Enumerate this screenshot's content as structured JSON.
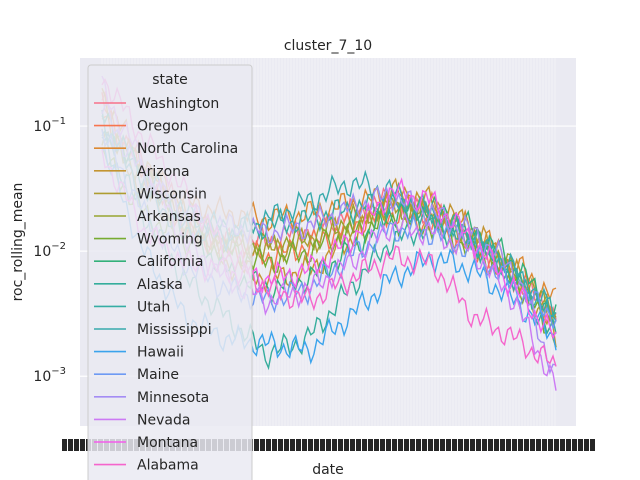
{
  "chart_data": {
    "type": "line",
    "title": "cluster_7_10",
    "xlabel": "date",
    "ylabel": "roc_rolling_mean",
    "yscale": "log",
    "ylim": [
      0.0004,
      0.35
    ],
    "grid": true,
    "y_ticks": [
      {
        "value": 0.1,
        "base": "10",
        "exp": "−1"
      },
      {
        "value": 0.01,
        "base": "10",
        "exp": "−2"
      },
      {
        "value": 0.001,
        "base": "10",
        "exp": "−3"
      }
    ],
    "legend": {
      "title": "state",
      "placement": "top-left"
    },
    "series": [
      {
        "name": "Washington",
        "color": "#f77189",
        "values": [
          0.16,
          0.05,
          0.02,
          0.012,
          0.012,
          0.015,
          0.02,
          0.026,
          0.02,
          0.012,
          0.006,
          0.003
        ]
      },
      {
        "name": "Oregon",
        "color": "#f7754f",
        "values": [
          0.15,
          0.04,
          0.015,
          0.01,
          0.009,
          0.011,
          0.016,
          0.02,
          0.016,
          0.01,
          0.006,
          0.003
        ]
      },
      {
        "name": "North Carolina",
        "color": "#dc8932",
        "values": [
          0.12,
          0.045,
          0.025,
          0.02,
          0.018,
          0.02,
          0.024,
          0.028,
          0.022,
          0.015,
          0.008,
          0.004
        ]
      },
      {
        "name": "Arizona",
        "color": "#c39532",
        "values": [
          0.18,
          0.05,
          0.02,
          0.008,
          0.006,
          0.007,
          0.012,
          0.03,
          0.025,
          0.015,
          0.007,
          0.002
        ]
      },
      {
        "name": "Wisconsin",
        "color": "#ae9d31",
        "values": [
          0.1,
          0.03,
          0.015,
          0.012,
          0.01,
          0.012,
          0.016,
          0.022,
          0.02,
          0.012,
          0.006,
          0.003
        ]
      },
      {
        "name": "Arkansas",
        "color": "#97a431",
        "values": [
          0.09,
          0.04,
          0.018,
          0.012,
          0.011,
          0.013,
          0.018,
          0.024,
          0.019,
          0.013,
          0.007,
          0.003
        ]
      },
      {
        "name": "Wyoming",
        "color": "#77ab31",
        "values": [
          0.06,
          0.02,
          0.012,
          0.01,
          0.008,
          0.01,
          0.014,
          0.018,
          0.016,
          0.01,
          0.006,
          0.002
        ]
      },
      {
        "name": "California",
        "color": "#33b07a",
        "values": [
          0.12,
          0.04,
          0.015,
          0.007,
          0.005,
          0.006,
          0.01,
          0.02,
          0.022,
          0.015,
          0.008,
          0.003
        ]
      },
      {
        "name": "Alaska",
        "color": "#35ad9c",
        "values": [
          0.08,
          0.02,
          0.006,
          0.003,
          0.0015,
          0.002,
          0.005,
          0.012,
          0.016,
          0.012,
          0.006,
          0.002
        ]
      },
      {
        "name": "Utah",
        "color": "#36ada4",
        "values": [
          0.11,
          0.04,
          0.02,
          0.015,
          0.016,
          0.018,
          0.022,
          0.024,
          0.018,
          0.012,
          0.006,
          0.003
        ]
      },
      {
        "name": "Mississippi",
        "color": "#38aaac",
        "values": [
          0.1,
          0.03,
          0.015,
          0.013,
          0.018,
          0.025,
          0.035,
          0.03,
          0.02,
          0.013,
          0.007,
          0.003
        ]
      },
      {
        "name": "Hawaii",
        "color": "#3ba3ec",
        "values": [
          0.07,
          0.01,
          0.003,
          0.002,
          0.0018,
          0.0016,
          0.003,
          0.006,
          0.009,
          0.007,
          0.004,
          0.002
        ]
      },
      {
        "name": "Maine",
        "color": "#6e9af4",
        "values": [
          0.09,
          0.02,
          0.008,
          0.005,
          0.004,
          0.005,
          0.009,
          0.015,
          0.014,
          0.01,
          0.005,
          0.003
        ]
      },
      {
        "name": "Minnesota",
        "color": "#a48cf4",
        "values": [
          0.14,
          0.04,
          0.02,
          0.016,
          0.014,
          0.016,
          0.022,
          0.028,
          0.02,
          0.014,
          0.007,
          0.001
        ]
      },
      {
        "name": "Nevada",
        "color": "#cc7af4",
        "values": [
          0.2,
          0.05,
          0.012,
          0.006,
          0.004,
          0.005,
          0.008,
          0.016,
          0.014,
          0.01,
          0.004,
          0.0008
        ]
      },
      {
        "name": "Montana",
        "color": "#f45deb",
        "values": [
          0.06,
          0.015,
          0.008,
          0.007,
          0.006,
          0.007,
          0.012,
          0.03,
          0.025,
          0.012,
          0.005,
          0.002
        ]
      },
      {
        "name": "Alabama",
        "color": "#f565cc",
        "values": [
          0.25,
          0.08,
          0.03,
          0.01,
          0.005,
          0.004,
          0.006,
          0.009,
          0.008,
          0.003,
          0.002,
          0.0012
        ]
      }
    ]
  }
}
